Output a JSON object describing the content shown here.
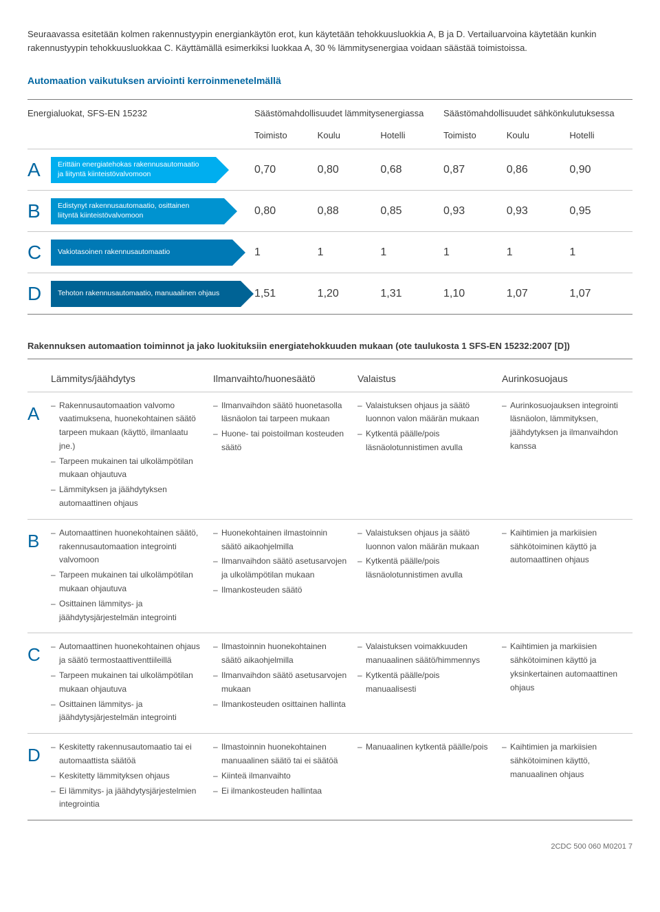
{
  "intro_text": "Seuraavassa esitetään kolmen rakennustyypin energiankäytön erot, kun käytetään tehokkuusluokkia A, B ja D. Vertailuarvoina käytetään kunkin rakennustyypin tehokkuusluokkaa C. Käyttämällä esimerkiksi luokkaa A, 30 % lämmitysenergiaa voidaan säästää toimistoissa.",
  "section1_title": "Automaation vaikutuksen arviointi kerroinmenetelmällä",
  "table1": {
    "head_label": "Energialuokat, SFS-EN 15232",
    "group1": "Säästömahdollisuudet lämmitysenergiassa",
    "group2": "Säästömahdollisuudet sähkönkulutuksessa",
    "subheads": [
      "Toimisto",
      "Koulu",
      "Hotelli",
      "Toimisto",
      "Koulu",
      "Hotelli"
    ],
    "rows": [
      {
        "letter": "A",
        "desc": "Erittäin energiatehokas rakennusautomaatio ja liityntä kiinteistövalvomoon",
        "values": [
          "0,70",
          "0,80",
          "0,68",
          "0,87",
          "0,86",
          "0,90"
        ]
      },
      {
        "letter": "B",
        "desc": "Edistynyt rakennusautomaatio, osittainen liityntä kiinteistövalvomoon",
        "values": [
          "0,80",
          "0,88",
          "0,85",
          "0,93",
          "0,93",
          "0,95"
        ]
      },
      {
        "letter": "C",
        "desc": "Vakiotasoinen rakennusautomaatio",
        "values": [
          "1",
          "1",
          "1",
          "1",
          "1",
          "1"
        ]
      },
      {
        "letter": "D",
        "desc": "Tehoton rakennusautomaatio, manuaalinen ohjaus",
        "values": [
          "1,51",
          "1,20",
          "1,31",
          "1,10",
          "1,07",
          "1,07"
        ]
      }
    ]
  },
  "section2_title": "Rakennuksen automaation toiminnot ja jako luokituksiin energiatehokkuuden mukaan (ote taulukosta 1 SFS-EN 15232:2007 [D])",
  "table2": {
    "cols": [
      "Lämmitys/jäähdytys",
      "Ilmanvaihto/huonesäätö",
      "Valaistus",
      "Aurinkosuojaus"
    ],
    "rows": [
      {
        "letter": "A",
        "c1": [
          "Rakennusautomaation valvomo vaatimuksena, huonekohtainen säätö tarpeen mukaan (käyttö, ilmanlaatu jne.)",
          "Tarpeen mukainen tai ulkolämpötilan mukaan ohjautuva",
          "Lämmityksen ja jäähdytyksen automaattinen ohjaus"
        ],
        "c2": [
          "Ilmanvaihdon säätö huonetasolla läsnäolon tai tarpeen mukaan",
          "Huone- tai poistoilman kosteuden säätö"
        ],
        "c3": [
          "Valaistuksen ohjaus ja säätö luonnon valon määrän mukaan",
          "Kytkentä päälle/pois läsnäolotunnistimen avulla"
        ],
        "c4": [
          "Aurinkosuojauksen integrointi läsnäolon, lämmityksen, jäähdytyksen ja ilmanvaihdon kanssa"
        ]
      },
      {
        "letter": "B",
        "c1": [
          "Automaattinen huonekohtainen säätö, rakennusautomaation integrointi valvomoon",
          "Tarpeen mukainen tai ulkolämpötilan mukaan ohjautuva",
          "Osittainen lämmitys- ja jäähdytysjärjestelmän integrointi"
        ],
        "c2": [
          "Huonekohtainen ilmastoinnin säätö aikaohjelmilla",
          "Ilmanvaihdon säätö asetusarvojen ja ulkolämpötilan mukaan",
          "Ilmankosteuden säätö"
        ],
        "c3": [
          "Valaistuksen ohjaus ja säätö luonnon valon määrän mukaan",
          "Kytkentä päälle/pois läsnäolotunnistimen avulla"
        ],
        "c4": [
          "Kaihtimien ja markiisien sähkötoiminen käyttö ja automaattinen ohjaus"
        ]
      },
      {
        "letter": "C",
        "c1": [
          "Automaattinen huonekohtainen ohjaus ja säätö termostaattiventtiileillä",
          "Tarpeen mukainen tai ulkolämpötilan mukaan ohjautuva",
          "Osittainen lämmitys- ja jäähdytysjärjestelmän integrointi"
        ],
        "c2": [
          "Ilmastoinnin huonekohtainen säätö aikaohjelmilla",
          "Ilmanvaihdon säätö asetusarvojen mukaan",
          "Ilmankosteuden osittainen hallinta"
        ],
        "c3": [
          "Valaistuksen voimakkuuden manuaalinen säätö/himmennys",
          "Kytkentä päälle/pois manuaalisesti"
        ],
        "c4": [
          "Kaihtimien ja markiisien sähkötoiminen käyttö ja yksinkertainen automaattinen ohjaus"
        ]
      },
      {
        "letter": "D",
        "c1": [
          "Keskitetty rakennusautomaatio tai ei automaattista säätöä",
          "Keskitetty lämmityksen ohjaus",
          "Ei lämmitys- ja jäähdytysjärjestelmien integrointia"
        ],
        "c2": [
          "Ilmastoinnin huonekohtainen manuaalinen säätö tai ei säätöä",
          "Kiinteä ilmanvaihto",
          "Ei ilmankosteuden hallintaa"
        ],
        "c3": [
          "Manuaalinen kytkentä päälle/pois"
        ],
        "c4": [
          "Kaihtimien ja markiisien sähkötoiminen käyttö, manuaalinen ohjaus"
        ]
      }
    ]
  },
  "footer": "2CDC 500 060 M0201 7",
  "style": {
    "brand_color": "#0066a1",
    "arrow_colors": [
      "#00aeef",
      "#0093d0",
      "#0079b5",
      "#006395"
    ],
    "text_color": "#3a3a3a"
  }
}
